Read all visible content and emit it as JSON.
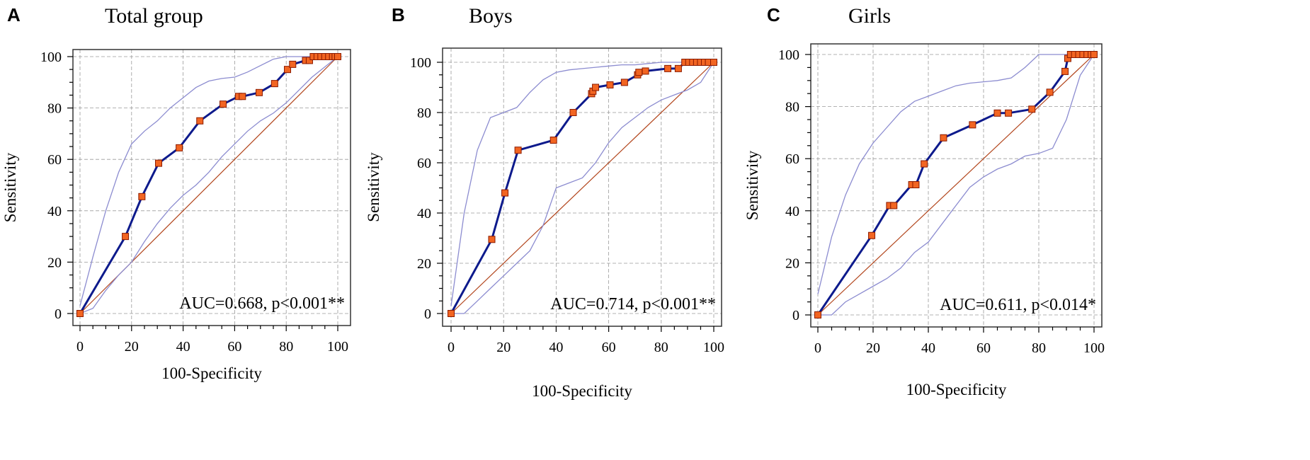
{
  "figure": {
    "description_none": ""
  },
  "colors": {
    "roc_line": "#0d1a8c",
    "ci_line": "#8c8cd0",
    "ref_line": "#b2451c",
    "marker_fill": "#f26522",
    "marker_edge": "#8b1a00",
    "grid": "#9a9a9a",
    "frame": "#333333"
  },
  "chart_data": [
    {
      "type": "line",
      "panel_letter": "A",
      "title": "Total group",
      "xlabel": "100-Specificity",
      "ylabel": "Sensitivity",
      "xlim": [
        0,
        100
      ],
      "ylim": [
        0,
        100
      ],
      "xticks": [
        "0",
        "20",
        "40",
        "60",
        "80",
        "100"
      ],
      "yticks": [
        "0",
        "20",
        "40",
        "60",
        "80",
        "100"
      ],
      "annotation": "AUC=0.668, p<0.001**",
      "series": [
        {
          "name": "ROC curve",
          "x": [
            0,
            17.6,
            24,
            30.5,
            38.5,
            46.5,
            55.5,
            61.5,
            63,
            69.5,
            75.5,
            80.5,
            82.5,
            87.5,
            89,
            90.5,
            92,
            93.5,
            95,
            96.5,
            98,
            99,
            100
          ],
          "y": [
            0,
            30,
            45.5,
            58.5,
            64.5,
            75,
            81.5,
            84.5,
            84.5,
            86,
            89.5,
            95,
            97,
            98.5,
            98.5,
            100,
            100,
            100,
            100,
            100,
            100,
            100,
            100
          ]
        },
        {
          "name": "Upper 95% CI",
          "x": [
            0,
            5,
            10,
            15,
            20,
            25,
            30,
            35,
            40,
            45,
            50,
            55,
            60,
            65,
            70,
            75,
            80,
            85,
            90,
            95,
            100
          ],
          "y": [
            3,
            22,
            40,
            55,
            66,
            71,
            75,
            80,
            84,
            88,
            90.5,
            91.5,
            92,
            94,
            96.5,
            99,
            100,
            100,
            100,
            100,
            100
          ]
        },
        {
          "name": "Lower 95% CI",
          "x": [
            0,
            5,
            10,
            15,
            20,
            25,
            30,
            35,
            40,
            45,
            50,
            55,
            60,
            65,
            70,
            75,
            80,
            85,
            90,
            95,
            100
          ],
          "y": [
            0,
            2,
            9,
            15,
            20,
            28,
            35,
            41,
            46,
            50,
            55,
            61,
            66,
            71,
            75,
            78,
            82,
            87,
            92,
            96,
            100
          ]
        },
        {
          "name": "Reference",
          "x": [
            0,
            100
          ],
          "y": [
            0,
            100
          ]
        }
      ]
    },
    {
      "type": "line",
      "panel_letter": "B",
      "title": "Boys",
      "xlabel": "100-Specificity",
      "ylabel": "Sensitivity",
      "xlim": [
        0,
        100
      ],
      "ylim": [
        0,
        100
      ],
      "xticks": [
        "0",
        "20",
        "40",
        "60",
        "80",
        "100"
      ],
      "yticks": [
        "0",
        "20",
        "40",
        "60",
        "80",
        "100"
      ],
      "annotation": "AUC=0.714, p<0.001**",
      "series": [
        {
          "name": "ROC curve",
          "x": [
            0,
            15.5,
            20.5,
            25.5,
            39,
            46.5,
            53.5,
            54,
            55,
            60.5,
            66,
            71,
            71.5,
            74,
            82.5,
            86.5,
            89,
            90.5,
            92,
            93.5,
            95,
            96.5,
            98,
            100
          ],
          "y": [
            0,
            29.5,
            48,
            65,
            69,
            80,
            87.5,
            88.5,
            90,
            91,
            92,
            95,
            96,
            96.5,
            97.5,
            97.5,
            100,
            100,
            100,
            100,
            100,
            100,
            100,
            100
          ]
        },
        {
          "name": "Upper 95% CI",
          "x": [
            0,
            5,
            10,
            15,
            20,
            25,
            30,
            35,
            40,
            45,
            50,
            55,
            60,
            65,
            70,
            75,
            80,
            85,
            90,
            95,
            100
          ],
          "y": [
            3,
            40,
            65,
            78,
            80,
            82,
            88,
            93,
            96,
            97,
            97.5,
            98,
            98.5,
            99,
            99,
            99.5,
            100,
            100,
            100,
            100,
            100
          ]
        },
        {
          "name": "Lower 95% CI",
          "x": [
            0,
            5,
            10,
            15,
            20,
            25,
            30,
            35,
            40,
            45,
            50,
            55,
            60,
            65,
            70,
            75,
            80,
            85,
            90,
            95,
            100
          ],
          "y": [
            0,
            0,
            5,
            10,
            15,
            20,
            25,
            35,
            50,
            52,
            54,
            60,
            68,
            74,
            78,
            82,
            85,
            87,
            89,
            92,
            100
          ]
        },
        {
          "name": "Reference",
          "x": [
            0,
            100
          ],
          "y": [
            0,
            100
          ]
        }
      ]
    },
    {
      "type": "line",
      "panel_letter": "C",
      "title": "Girls",
      "xlabel": "100-Specificity",
      "ylabel": "Sensitivity",
      "xlim": [
        0,
        100
      ],
      "ylim": [
        0,
        100
      ],
      "xticks": [
        "0",
        "20",
        "40",
        "60",
        "80",
        "100"
      ],
      "yticks": [
        "0",
        "20",
        "40",
        "60",
        "80",
        "100"
      ],
      "annotation": "AUC=0.611, p<0.014*",
      "series": [
        {
          "name": "ROC curve",
          "x": [
            0,
            19.5,
            26,
            27.5,
            34,
            35.5,
            38.5,
            45.5,
            56,
            65,
            69,
            77.5,
            84,
            89.5,
            90.5,
            91.5,
            93,
            94.5,
            96,
            97.5,
            99,
            100
          ],
          "y": [
            0,
            30.5,
            42,
            42,
            50,
            50,
            58,
            68,
            73,
            77.5,
            77.5,
            79,
            85.5,
            93.5,
            98.5,
            100,
            100,
            100,
            100,
            100,
            100,
            100
          ]
        },
        {
          "name": "Upper 95% CI",
          "x": [
            0,
            5,
            10,
            15,
            20,
            25,
            30,
            35,
            40,
            45,
            50,
            55,
            60,
            65,
            70,
            75,
            80,
            85,
            90,
            95,
            100
          ],
          "y": [
            8,
            30,
            46,
            58,
            66,
            72,
            78,
            82,
            84,
            86,
            88,
            89,
            89.5,
            90,
            91,
            95,
            100,
            100,
            100,
            100,
            100
          ]
        },
        {
          "name": "Lower 95% CI",
          "x": [
            0,
            5,
            10,
            15,
            20,
            25,
            30,
            35,
            40,
            45,
            50,
            55,
            60,
            65,
            70,
            75,
            80,
            85,
            90,
            95,
            100
          ],
          "y": [
            0,
            0,
            5,
            8,
            11,
            14,
            18,
            24,
            28,
            35,
            42,
            49,
            53,
            56,
            58,
            61,
            62,
            64,
            75,
            92,
            100
          ]
        },
        {
          "name": "Reference",
          "x": [
            0,
            100
          ],
          "y": [
            0,
            100
          ]
        }
      ]
    }
  ]
}
